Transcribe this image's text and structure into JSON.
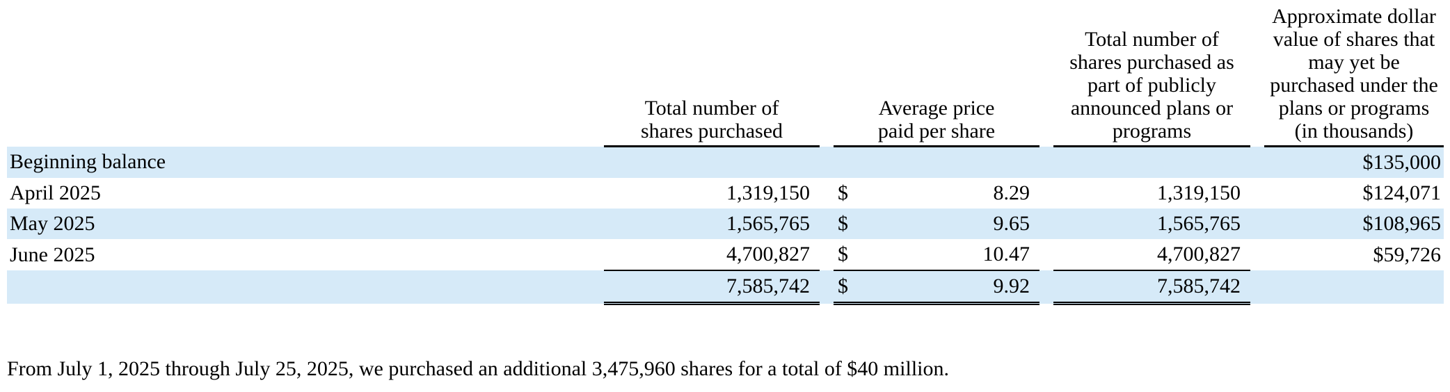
{
  "table": {
    "headers": {
      "shares_purchased": "Total number of shares purchased",
      "avg_price": "Average price paid per share",
      "plan_shares": "Total number of shares purchased as part of publicly announced plans or programs",
      "remaining_value": "Approximate dollar value of shares that may yet be purchased under the plans or programs (in thousands)"
    },
    "rows": [
      {
        "label": "Beginning balance",
        "shares": "",
        "currency": "",
        "price": "",
        "plan_shares": "",
        "remaining": "$135,000"
      },
      {
        "label": "April 2025",
        "shares": "1,319,150",
        "currency": "$",
        "price": "8.29",
        "plan_shares": "1,319,150",
        "remaining": "$124,071"
      },
      {
        "label": "May 2025",
        "shares": "1,565,765",
        "currency": "$",
        "price": "9.65",
        "plan_shares": "1,565,765",
        "remaining": "$108,965"
      },
      {
        "label": "June 2025",
        "shares": "4,700,827",
        "currency": "$",
        "price": "10.47",
        "plan_shares": "4,700,827",
        "remaining": "$59,726"
      }
    ],
    "total": {
      "label": "",
      "shares": "7,585,742",
      "currency": "$",
      "price": "9.92",
      "plan_shares": "7,585,742",
      "remaining": ""
    }
  },
  "footnote": "From July 1, 2025 through July 25, 2025, we purchased an additional 3,475,960 shares for a total of $40 million."
}
